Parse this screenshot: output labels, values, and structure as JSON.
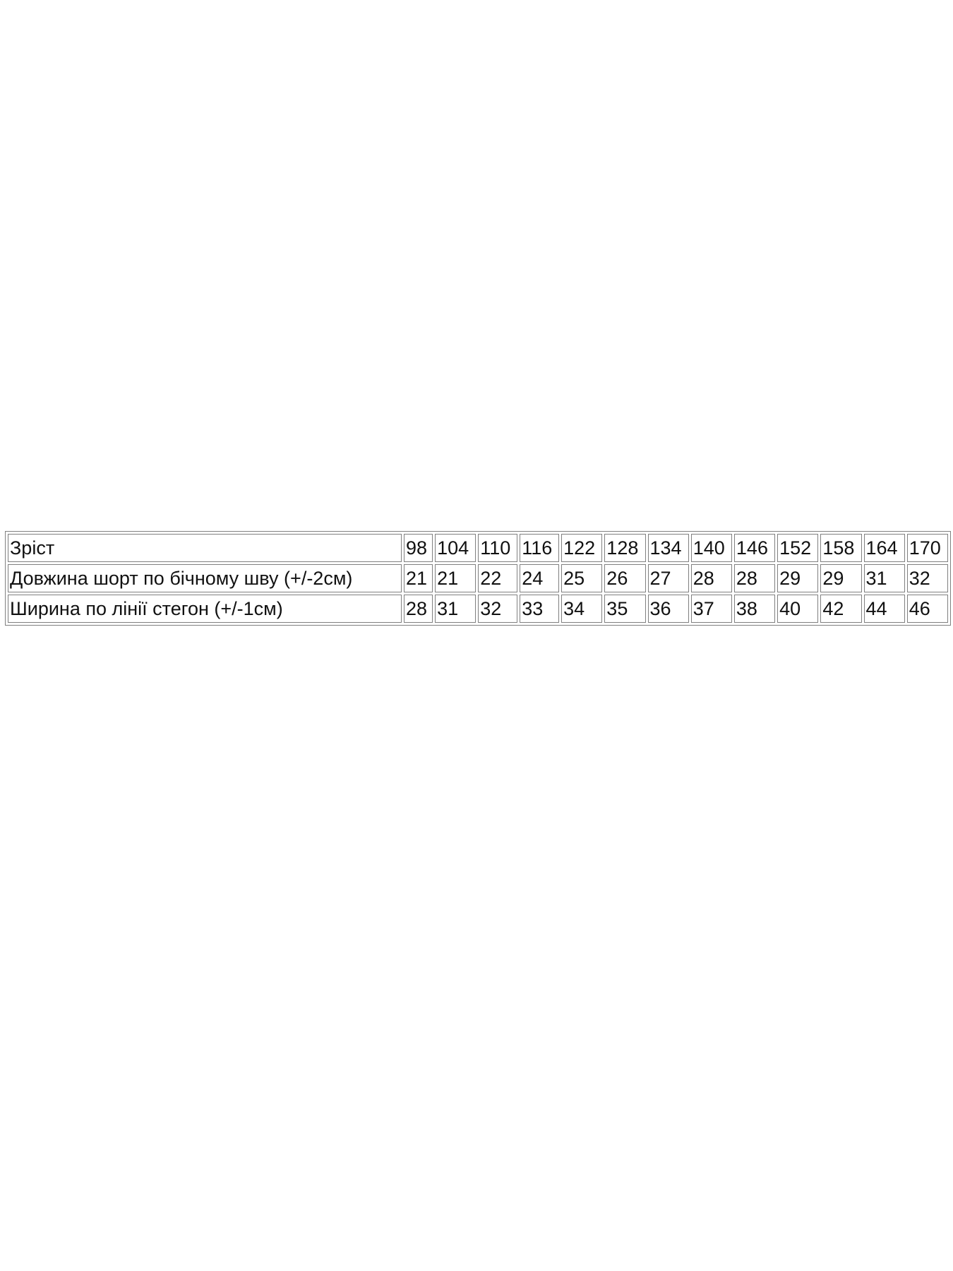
{
  "table": {
    "rows": [
      [
        "Зріст",
        98,
        104,
        110,
        116,
        122,
        128,
        134,
        140,
        146,
        152,
        158,
        164,
        170
      ],
      [
        "Довжина шорт по бічному шву (+/-2см)",
        21,
        21,
        22,
        24,
        25,
        26,
        27,
        28,
        28,
        29,
        29,
        31,
        32
      ],
      [
        "Ширина по лінії стегон (+/-1см)",
        28,
        31,
        32,
        33,
        34,
        35,
        36,
        37,
        38,
        40,
        42,
        44,
        46
      ]
    ]
  }
}
